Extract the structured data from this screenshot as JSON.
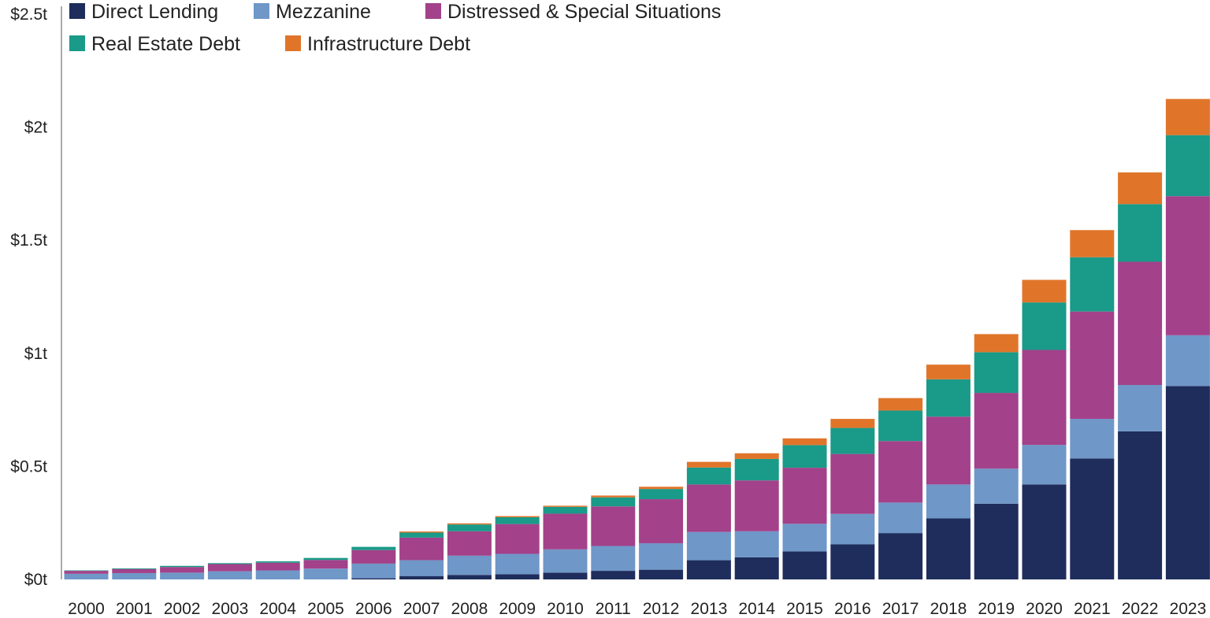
{
  "chart_data": {
    "type": "bar",
    "stacked": true,
    "title": "",
    "xlabel": "",
    "ylabel": "",
    "ylim": [
      0,
      2.5
    ],
    "y_ticks": [
      {
        "value": 0,
        "label": "$0t"
      },
      {
        "value": 0.5,
        "label": "$0.5t"
      },
      {
        "value": 1,
        "label": "$1t"
      },
      {
        "value": 1.5,
        "label": "$1.5t"
      },
      {
        "value": 2,
        "label": "$2t"
      },
      {
        "value": 2.5,
        "label": "$2.5t"
      }
    ],
    "legend_position": "top-left",
    "categories": [
      "2000",
      "2001",
      "2002",
      "2003",
      "2004",
      "2005",
      "2006",
      "2007",
      "2008",
      "2009",
      "2010",
      "2011",
      "2012",
      "2013",
      "2014",
      "2015",
      "2016",
      "2017",
      "2018",
      "2019",
      "2020",
      "2021",
      "2022",
      "2023"
    ],
    "series": [
      {
        "name": "Direct Lending",
        "color": "#1f2d5c",
        "values": [
          0,
          0,
          0,
          0,
          0,
          0,
          0.005,
          0.015,
          0.02,
          0.023,
          0.03,
          0.038,
          0.043,
          0.085,
          0.098,
          0.124,
          0.155,
          0.205,
          0.27,
          0.335,
          0.42,
          0.535,
          0.655,
          0.855
        ]
      },
      {
        "name": "Mezzanine",
        "color": "#6f97c8",
        "values": [
          0.025,
          0.028,
          0.03,
          0.036,
          0.04,
          0.048,
          0.065,
          0.07,
          0.085,
          0.09,
          0.103,
          0.11,
          0.117,
          0.125,
          0.115,
          0.122,
          0.135,
          0.135,
          0.15,
          0.155,
          0.175,
          0.175,
          0.205,
          0.225
        ]
      },
      {
        "name": "Distressed & Special Situations",
        "color": "#a3418a",
        "values": [
          0.013,
          0.018,
          0.025,
          0.032,
          0.034,
          0.038,
          0.06,
          0.1,
          0.108,
          0.132,
          0.158,
          0.175,
          0.195,
          0.21,
          0.225,
          0.248,
          0.265,
          0.272,
          0.3,
          0.335,
          0.42,
          0.475,
          0.545,
          0.615
        ]
      },
      {
        "name": "Real Estate Debt",
        "color": "#1a9a88",
        "values": [
          0.002,
          0.003,
          0.005,
          0.004,
          0.006,
          0.009,
          0.014,
          0.022,
          0.03,
          0.03,
          0.03,
          0.04,
          0.045,
          0.075,
          0.095,
          0.1,
          0.115,
          0.135,
          0.165,
          0.18,
          0.21,
          0.24,
          0.255,
          0.27
        ]
      },
      {
        "name": "Infrastructure Debt",
        "color": "#e0752a",
        "values": [
          0,
          0,
          0,
          0,
          0,
          0,
          0,
          0.005,
          0.005,
          0.005,
          0.005,
          0.008,
          0.01,
          0.025,
          0.025,
          0.03,
          0.04,
          0.055,
          0.065,
          0.08,
          0.1,
          0.12,
          0.14,
          0.16
        ]
      }
    ]
  }
}
